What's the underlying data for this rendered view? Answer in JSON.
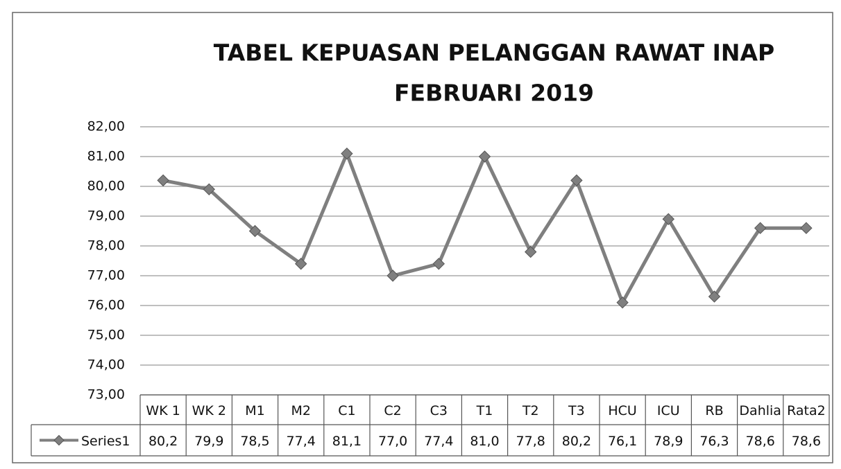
{
  "chart_data": {
    "type": "line",
    "title": [
      "TABEL KEPUASAN PELANGGAN RAWAT INAP",
      "FEBRUARI 2019"
    ],
    "categories": [
      "WK 1",
      "WK 2",
      "M1",
      "M2",
      "C1",
      "C2",
      "C3",
      "T1",
      "T2",
      "T3",
      "HCU",
      "ICU",
      "RB",
      "Dahlia",
      "Rata2"
    ],
    "series": [
      {
        "name": "Series1",
        "color": "#7f7f7f",
        "values": [
          80.2,
          79.9,
          78.5,
          77.4,
          81.1,
          77.0,
          77.4,
          81.0,
          77.8,
          80.2,
          76.1,
          78.9,
          76.3,
          78.6,
          78.6
        ],
        "value_labels": [
          "80,2",
          "79,9",
          "78,5",
          "77,4",
          "81,1",
          "77,0",
          "77,4",
          "81,0",
          "77,8",
          "80,2",
          "76,1",
          "78,9",
          "76,3",
          "78,6",
          "78,6"
        ]
      }
    ],
    "ylim": [
      73,
      82
    ],
    "yticks": [
      {
        "value": 73,
        "label": "73,00"
      },
      {
        "value": 74,
        "label": "74,00"
      },
      {
        "value": 75,
        "label": "75,00"
      },
      {
        "value": 76,
        "label": "76,00"
      },
      {
        "value": 77,
        "label": "77,00"
      },
      {
        "value": 78,
        "label": "78,00"
      },
      {
        "value": 79,
        "label": "79,00"
      },
      {
        "value": 80,
        "label": "80,00"
      },
      {
        "value": 81,
        "label": "81,00"
      },
      {
        "value": 82,
        "label": "82,00"
      }
    ],
    "grid": true
  }
}
